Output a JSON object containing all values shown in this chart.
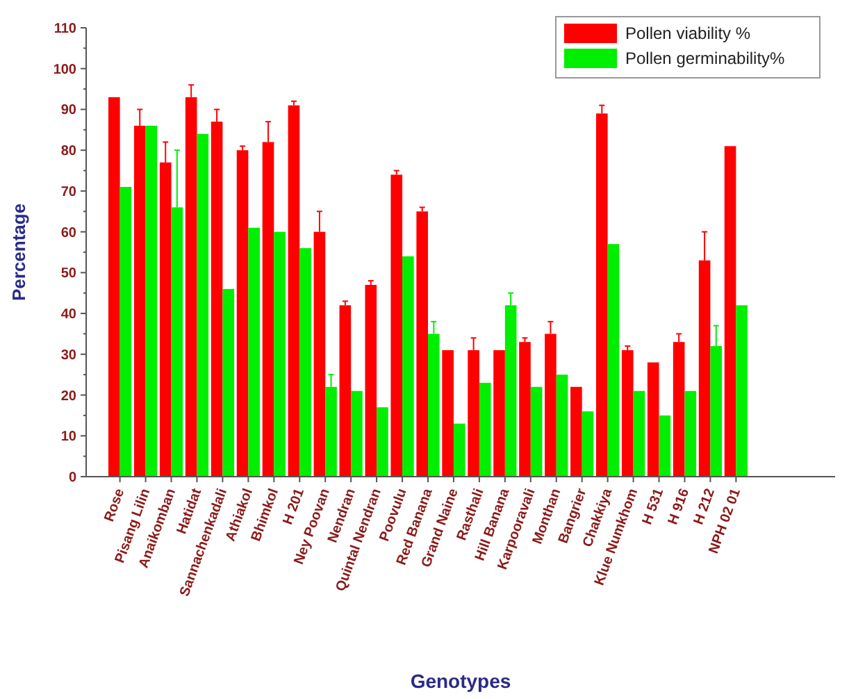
{
  "chart_data": {
    "type": "bar",
    "xlabel": "Genotypes",
    "ylabel": "Percentage",
    "categories": [
      "Rose",
      "Pisang Lilin",
      "Anaikomban",
      "Hatidat",
      "Sannachenkadali",
      "Athiakol",
      "Bhimkol",
      "H 201",
      "Ney Poovan",
      "Nendran",
      "Quintal Nendran",
      "Poovulu",
      "Red Banana",
      "Grand Naine",
      "Rasthali",
      "Hill Banana",
      "Karpooravali",
      "Monthan",
      "Bangrier",
      "Chakkiya",
      "Klue Numkhom",
      "H 531",
      "H 916",
      "H 212",
      "NPH 02 01"
    ],
    "series": [
      {
        "name": "Pollen viability %",
        "color": "#ff0000",
        "values": [
          93,
          86,
          77,
          93,
          87,
          80,
          82,
          91,
          60,
          42,
          47,
          74,
          65,
          31,
          31,
          31,
          33,
          35,
          22,
          89,
          31,
          28,
          33,
          53,
          81
        ],
        "errors": [
          null,
          4,
          5,
          3,
          3,
          1,
          5,
          1,
          5,
          1,
          1,
          1,
          1,
          null,
          3,
          null,
          1,
          3,
          null,
          2,
          1,
          null,
          2,
          7,
          null
        ]
      },
      {
        "name": "Pollen germinability%",
        "color": "#00ee00",
        "values": [
          71,
          86,
          66,
          84,
          46,
          61,
          60,
          56,
          22,
          21,
          17,
          54,
          35,
          13,
          23,
          42,
          22,
          25,
          16,
          57,
          21,
          15,
          21,
          32,
          42
        ],
        "errors": [
          null,
          null,
          14,
          null,
          null,
          null,
          null,
          null,
          3,
          null,
          null,
          null,
          3,
          null,
          null,
          3,
          null,
          null,
          null,
          null,
          null,
          null,
          null,
          5,
          null
        ]
      }
    ],
    "ylim": [
      0,
      110
    ],
    "yticks": [
      0,
      10,
      20,
      30,
      40,
      50,
      60,
      70,
      80,
      90,
      100,
      110
    ],
    "grid": false,
    "legend": "top right"
  }
}
